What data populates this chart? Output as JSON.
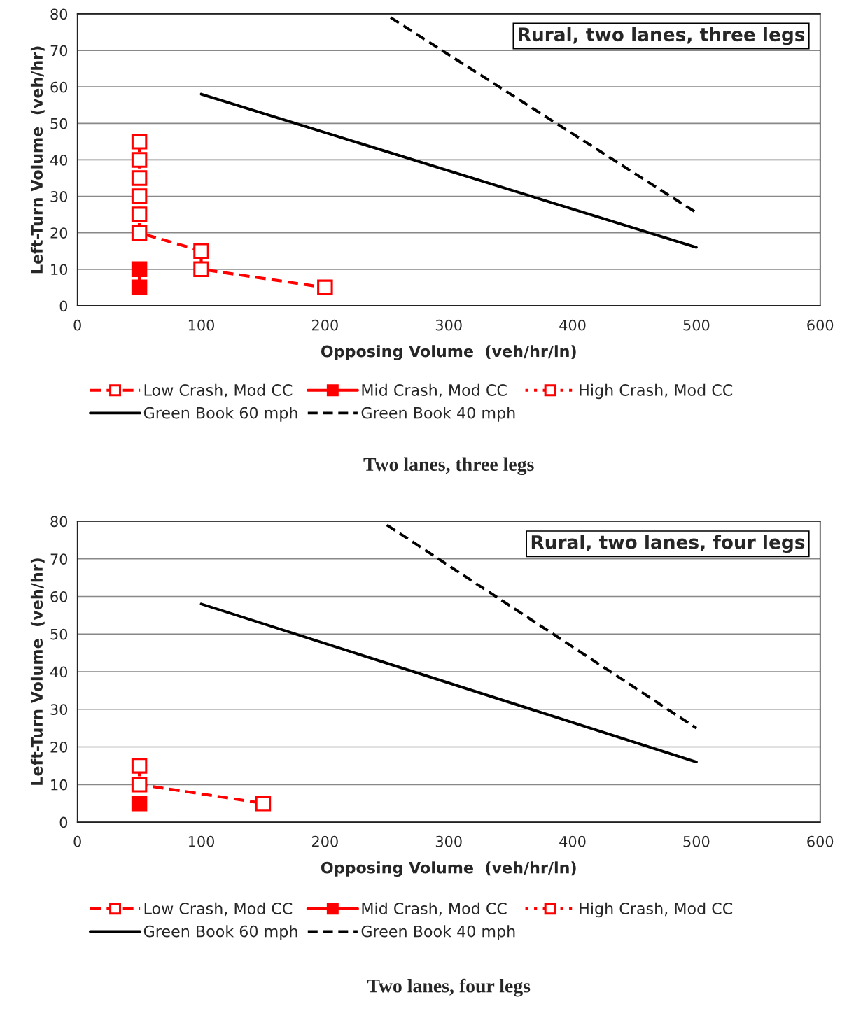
{
  "chart_data": [
    {
      "type": "line",
      "title": "Two lanes, three legs",
      "xlabel": "Opposing Volume  (veh/hr/ln)",
      "ylabel": "Left-Turn Volume  (veh/hr)",
      "annotations": [
        "Rural, two lanes, three legs"
      ],
      "xlim": [
        0,
        600
      ],
      "xticks": [
        0,
        100,
        200,
        300,
        400,
        500,
        600
      ],
      "ylim": [
        0,
        80
      ],
      "yticks": [
        0,
        10,
        20,
        30,
        40,
        50,
        60,
        70,
        80
      ],
      "grid": "y",
      "legend": "bottom",
      "series": [
        {
          "name": "Low Crash, Mod CC",
          "color": "#ff0000",
          "marker": "square",
          "line_style": "dashed",
          "x": [
            50,
            50,
            50,
            50,
            50,
            50,
            100,
            100,
            200
          ],
          "values": [
            45,
            40,
            35,
            30,
            25,
            20,
            15,
            10,
            5
          ]
        },
        {
          "name": "Mid Crash, Mod CC",
          "color": "#ff0000",
          "marker": "square",
          "line_style": "solid",
          "x": [
            50,
            50
          ],
          "values": [
            10,
            5
          ]
        },
        {
          "name": "High Crash, Mod CC",
          "color": "#ff0000",
          "marker": "square",
          "line_style": "dotted"
        },
        {
          "name": "Green Book 60 mph",
          "color": "#000000",
          "marker": "none",
          "line_style": "solid",
          "x": [
            100,
            500
          ],
          "values": [
            58,
            16
          ]
        },
        {
          "name": "Green Book 40 mph",
          "color": "#000000",
          "marker": "none",
          "line_style": "dashed",
          "x": [
            253,
            500
          ],
          "values": [
            79,
            25.5
          ]
        }
      ]
    },
    {
      "type": "line",
      "title": "Two lanes, four legs",
      "xlabel": "Opposing Volume  (veh/hr/ln)",
      "ylabel": "Left-Turn Volume  (veh/hr)",
      "annotations": [
        "Rural, two lanes, four legs"
      ],
      "xlim": [
        0,
        600
      ],
      "xticks": [
        0,
        100,
        200,
        300,
        400,
        500,
        600
      ],
      "ylim": [
        0,
        80
      ],
      "yticks": [
        0,
        10,
        20,
        30,
        40,
        50,
        60,
        70,
        80
      ],
      "grid": "y",
      "legend": "bottom",
      "series": [
        {
          "name": "Low Crash, Mod CC",
          "color": "#ff0000",
          "marker": "square",
          "line_style": "dashed",
          "x": [
            50,
            50,
            150
          ],
          "values": [
            15,
            10,
            5
          ]
        },
        {
          "name": "Mid Crash, Mod CC",
          "color": "#ff0000",
          "marker": "square",
          "line_style": "solid",
          "x": [
            50
          ],
          "values": [
            5
          ]
        },
        {
          "name": "High Crash, Mod CC",
          "color": "#ff0000",
          "marker": "square",
          "line_style": "dotted"
        },
        {
          "name": "Green Book 60 mph",
          "color": "#000000",
          "marker": "none",
          "line_style": "solid",
          "x": [
            100,
            500
          ],
          "values": [
            58,
            16
          ]
        },
        {
          "name": "Green Book 40 mph",
          "color": "#000000",
          "marker": "none",
          "line_style": "dashed",
          "x": [
            250,
            500
          ],
          "values": [
            79,
            25
          ]
        }
      ]
    }
  ]
}
